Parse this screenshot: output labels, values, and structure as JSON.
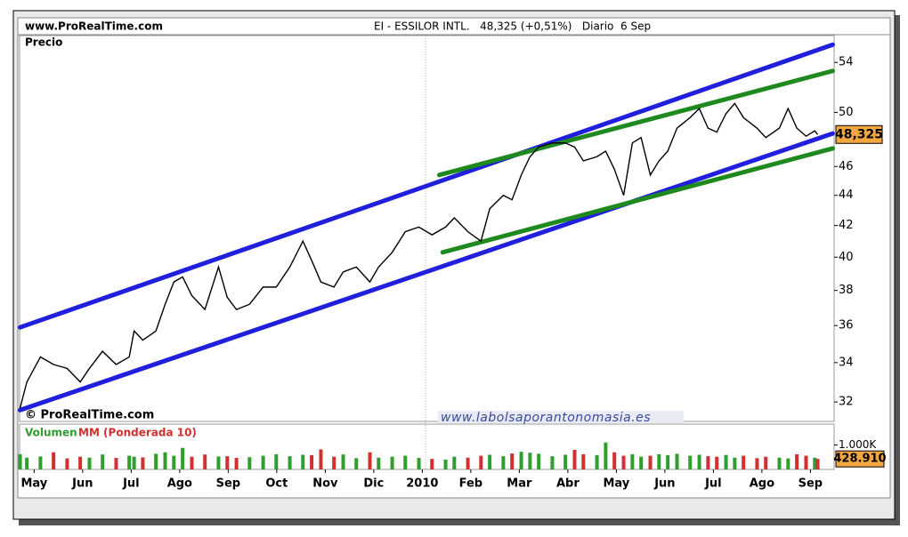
{
  "chart_data": {
    "type": "line",
    "header_left": "www.ProRealTime.com",
    "title": "EI - ESSILOR INTL.   48,325 (+0,51%)   Diario  6 Sep",
    "y_label": "Precio",
    "watermark": "© ProRealTime.com",
    "website": "www.labolsaporantonomasia.es",
    "log_scale": true,
    "color": "#000000",
    "xlim": [
      -0.3,
      16.47
    ],
    "xticks": [
      {
        "value": 0,
        "label": "May"
      },
      {
        "value": 1,
        "label": "Jun"
      },
      {
        "value": 2,
        "label": "Jul"
      },
      {
        "value": 3,
        "label": "Ago"
      },
      {
        "value": 4,
        "label": "Sep"
      },
      {
        "value": 5,
        "label": "Oct"
      },
      {
        "value": 6,
        "label": "Nov"
      },
      {
        "value": 7,
        "label": "Dic"
      },
      {
        "value": 8,
        "label": "2010"
      },
      {
        "value": 9,
        "label": "Feb"
      },
      {
        "value": 10,
        "label": "Mar"
      },
      {
        "value": 11,
        "label": "Abr"
      },
      {
        "value": 12,
        "label": "May"
      },
      {
        "value": 13,
        "label": "Jun"
      },
      {
        "value": 14,
        "label": "Jul"
      },
      {
        "value": 15,
        "label": "Ago"
      },
      {
        "value": 16,
        "label": "Sep"
      }
    ],
    "ylim": [
      31.14,
      55.9
    ],
    "yticks": [
      32,
      34,
      36,
      38,
      40,
      42,
      44,
      46,
      50,
      54
    ],
    "x": [
      -0.29,
      -0.15,
      0.13,
      0.4,
      0.68,
      0.95,
      1.14,
      1.41,
      1.69,
      1.96,
      2.06,
      2.24,
      2.51,
      2.7,
      2.88,
      3.06,
      3.25,
      3.52,
      3.8,
      3.98,
      4.17,
      4.44,
      4.72,
      4.99,
      5.27,
      5.54,
      5.72,
      5.91,
      6.18,
      6.37,
      6.64,
      6.92,
      7.1,
      7.38,
      7.65,
      7.93,
      8.2,
      8.48,
      8.66,
      8.94,
      9.21,
      9.39,
      9.67,
      9.85,
      10.04,
      10.22,
      10.4,
      10.68,
      10.95,
      11.14,
      11.32,
      11.6,
      11.78,
      11.96,
      12.15,
      12.33,
      12.51,
      12.7,
      12.88,
      13.06,
      13.25,
      13.52,
      13.71,
      13.89,
      14.07,
      14.26,
      14.44,
      14.62,
      14.9,
      15.08,
      15.36,
      15.54,
      15.72,
      15.91,
      16.09,
      16.15
    ],
    "values": [
      31.7,
      33.0,
      34.3,
      33.9,
      33.7,
      33.0,
      33.7,
      34.6,
      33.9,
      34.3,
      35.7,
      35.2,
      35.7,
      37.2,
      38.5,
      38.8,
      37.7,
      36.9,
      39.4,
      37.6,
      36.9,
      37.2,
      38.2,
      38.2,
      39.4,
      41.0,
      39.8,
      38.5,
      38.2,
      39.1,
      39.4,
      38.5,
      39.4,
      40.3,
      41.6,
      41.9,
      41.4,
      41.9,
      42.5,
      41.6,
      41.0,
      43.1,
      44.0,
      43.7,
      45.4,
      46.7,
      47.4,
      47.7,
      47.7,
      47.4,
      46.4,
      46.7,
      47.1,
      45.8,
      44.0,
      47.7,
      48.1,
      45.4,
      46.4,
      47.1,
      48.8,
      49.6,
      50.3,
      48.8,
      48.5,
      49.9,
      50.7,
      49.6,
      48.8,
      48.1,
      48.8,
      50.3,
      48.8,
      48.2,
      48.6,
      48.325
    ],
    "trendlines": [
      {
        "color": "#1f1fdc",
        "x": [
          -0.29,
          16.46
        ],
        "values": [
          35.9,
          55.5
        ]
      },
      {
        "color": "#1f1fdc",
        "x": [
          -0.29,
          16.46
        ],
        "values": [
          31.6,
          48.4
        ]
      },
      {
        "color": "#1e8a1e",
        "x": [
          8.35,
          16.46
        ],
        "values": [
          45.4,
          53.3
        ]
      },
      {
        "color": "#1e8a1e",
        "x": [
          8.42,
          16.46
        ],
        "values": [
          40.3,
          47.3
        ]
      }
    ],
    "last_price": 48.325,
    "last_price_label": "48,325",
    "volume": {
      "label": "Volumen",
      "ma_label": "MM (Ponderada 10)",
      "up_color": "#2e9e2e",
      "down_color": "#d03030",
      "ylim": [
        0,
        1815
      ],
      "yticks": [
        {
          "value": 1000,
          "label": "1.000K"
        }
      ],
      "values": [
        620,
        480,
        530,
        700,
        450,
        520,
        480,
        610,
        470,
        560,
        520,
        490,
        640,
        700,
        560,
        880,
        520,
        610,
        530,
        540,
        470,
        500,
        560,
        620,
        540,
        600,
        580,
        820,
        520,
        610,
        460,
        700,
        480,
        520,
        560,
        470,
        430,
        400,
        520,
        480,
        560,
        600,
        540,
        650,
        720,
        680,
        640,
        540,
        600,
        800,
        620,
        580,
        1100,
        700,
        560,
        620,
        520,
        560,
        620,
        580,
        640,
        560,
        600,
        540,
        520,
        590,
        480,
        560,
        460,
        520,
        480,
        450,
        620,
        560,
        480,
        428.91
      ],
      "last": 428.91,
      "last_label": "428.910"
    }
  }
}
